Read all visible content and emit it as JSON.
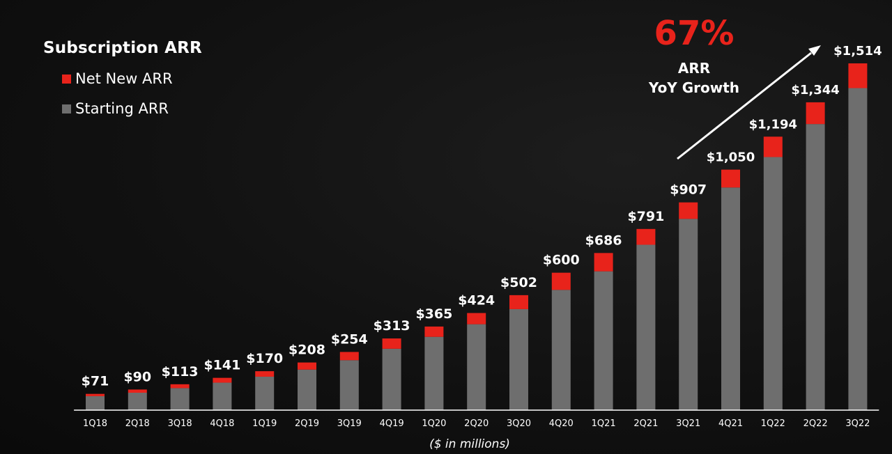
{
  "legend": {
    "title": "Subscription ARR",
    "items": [
      {
        "label": "Net New ARR",
        "color": "#e8231b"
      },
      {
        "label": "Starting ARR",
        "color": "#6e6e6e"
      }
    ]
  },
  "callout": {
    "value": "67%",
    "line1": "ARR",
    "line2": "YoY Growth"
  },
  "chart_data": {
    "type": "bar",
    "stacked": true,
    "categories": [
      "1Q18",
      "2Q18",
      "3Q18",
      "4Q18",
      "1Q19",
      "2Q19",
      "3Q19",
      "4Q19",
      "1Q20",
      "2Q20",
      "3Q20",
      "4Q20",
      "1Q21",
      "2Q21",
      "3Q21",
      "4Q21",
      "1Q22",
      "2Q22",
      "3Q22"
    ],
    "series": [
      {
        "name": "Starting ARR",
        "color": "#6e6e6e",
        "values": [
          61,
          76,
          96,
          120,
          146,
          177,
          218,
          268,
          320,
          375,
          441,
          525,
          606,
          722,
          835,
          972,
          1105,
          1249,
          1406
        ]
      },
      {
        "name": "Net New ARR",
        "color": "#e8231b",
        "values": [
          10,
          14,
          17,
          21,
          24,
          31,
          36,
          45,
          45,
          49,
          61,
          75,
          80,
          69,
          72,
          78,
          89,
          95,
          108
        ]
      }
    ],
    "totals": [
      71,
      90,
      113,
      141,
      170,
      208,
      254,
      313,
      365,
      424,
      502,
      600,
      686,
      791,
      907,
      1050,
      1194,
      1344,
      1514
    ],
    "data_labels": [
      "$71",
      "$90",
      "$113",
      "$141",
      "$170",
      "$208",
      "$254",
      "$313",
      "$365",
      "$424",
      "$502",
      "$600",
      "$686",
      "$791",
      "$907",
      "$1,050",
      "$1,194",
      "$1,344",
      "$1,514"
    ],
    "xlabel": "($ in millions)",
    "ylim": [
      0,
      1514
    ],
    "grid": false,
    "legend_position": "top-left"
  }
}
